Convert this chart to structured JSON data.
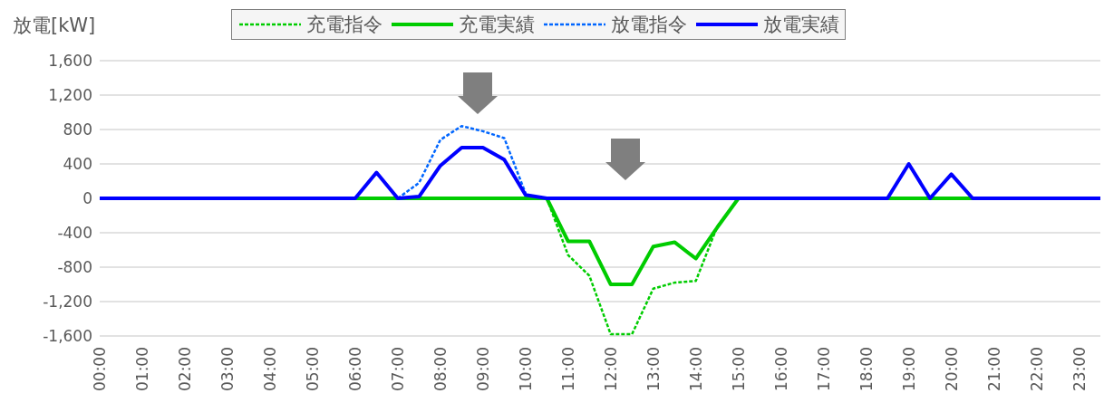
{
  "chart_data": {
    "type": "line",
    "ylabel": "放電[kW]",
    "categories": [
      "00:00",
      null,
      "01:00",
      null,
      "02:00",
      null,
      "03:00",
      null,
      "04:00",
      null,
      "05:00",
      null,
      "06:00",
      null,
      "07:00",
      null,
      "08:00",
      null,
      "09:00",
      null,
      "10:00",
      null,
      "11:00",
      null,
      "12:00",
      null,
      "13:00",
      null,
      "14:00",
      null,
      "15:00",
      null,
      "16:00",
      null,
      "17:00",
      null,
      "18:00",
      null,
      "19:00",
      null,
      "20:00",
      null,
      "21:00",
      null,
      "22:00",
      null,
      "23:00",
      null
    ],
    "series": [
      {
        "name": "充電指令",
        "color": "#00cc00",
        "line_style": "dashed",
        "values": [
          null,
          null,
          null,
          null,
          null,
          null,
          null,
          null,
          null,
          null,
          null,
          null,
          null,
          null,
          null,
          null,
          null,
          null,
          null,
          null,
          null,
          0,
          -660,
          -900,
          -1580,
          -1580,
          -1050,
          -980,
          -960,
          -330,
          0,
          null,
          null,
          null,
          null,
          null,
          null,
          null,
          null,
          null,
          null,
          null,
          null,
          null,
          null,
          null,
          null,
          null
        ]
      },
      {
        "name": "充電実績",
        "color": "#00cc00",
        "line_style": "solid",
        "values": [
          null,
          null,
          null,
          null,
          null,
          null,
          null,
          null,
          null,
          null,
          null,
          0,
          0,
          0,
          0,
          0,
          0,
          0,
          0,
          0,
          0,
          0,
          -500,
          -500,
          -1000,
          -1000,
          -560,
          -510,
          -700,
          -340,
          0,
          0,
          0,
          0,
          0,
          0,
          0,
          0,
          0,
          0,
          0,
          0,
          0,
          null,
          null,
          null,
          null,
          null
        ]
      },
      {
        "name": "放電指令",
        "color": "#0066ff",
        "line_style": "dashed",
        "values": [
          null,
          null,
          null,
          null,
          null,
          null,
          null,
          null,
          null,
          null,
          null,
          null,
          null,
          null,
          0,
          180,
          680,
          840,
          780,
          700,
          60,
          null,
          null,
          null,
          null,
          null,
          null,
          null,
          null,
          null,
          null,
          null,
          null,
          null,
          null,
          null,
          null,
          null,
          null,
          null,
          null,
          null,
          null,
          null,
          null,
          null,
          null,
          null
        ]
      },
      {
        "name": "放電実績",
        "color": "#0000ff",
        "line_style": "solid",
        "values": [
          0,
          0,
          0,
          0,
          0,
          0,
          0,
          0,
          0,
          0,
          0,
          0,
          0,
          300,
          0,
          20,
          380,
          590,
          590,
          450,
          40,
          0,
          0,
          0,
          0,
          0,
          0,
          0,
          0,
          0,
          0,
          0,
          0,
          0,
          0,
          0,
          0,
          0,
          400,
          0,
          280,
          0,
          0,
          0,
          0,
          0,
          0,
          0
        ]
      }
    ],
    "ylim": [
      -1600,
      1600
    ],
    "yticks": [
      {
        "value": -1600,
        "label": "-1,600"
      },
      {
        "value": -1200,
        "label": "-1,200"
      },
      -800,
      -400,
      0,
      400,
      800,
      {
        "value": 1200,
        "label": "1,200"
      },
      {
        "value": 1600,
        "label": "1,600"
      }
    ],
    "grid": "y",
    "legend": "top",
    "marker": "none"
  }
}
